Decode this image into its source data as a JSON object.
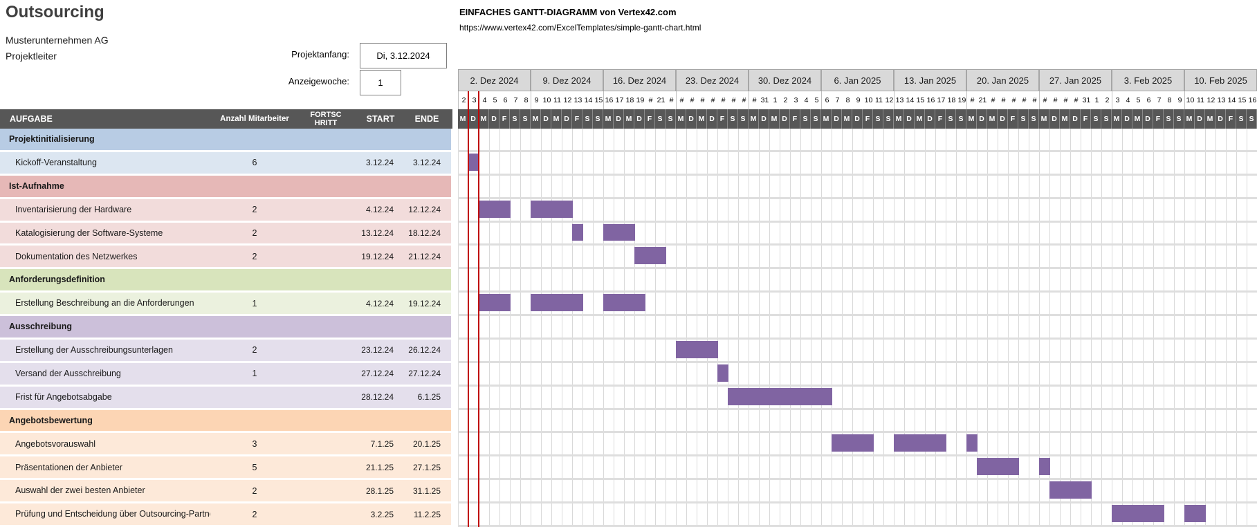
{
  "header": {
    "title": "Outsourcing",
    "company": "Musterunternehmen AG",
    "role": "Projektleiter",
    "credit_title": "EINFACHES GANTT-DIAGRAMM von Vertex42.com",
    "credit_url": "https://www.vertex42.com/ExcelTemplates/simple-gantt-chart.html",
    "project_start_label": "Projektanfang:",
    "project_start_value": "Di, 3.12.2024",
    "display_week_label": "Anzeigewoche:",
    "display_week_value": "1"
  },
  "table": {
    "columns": [
      "AUFGABE",
      "Anzahl Mitarbeiter",
      "FORTSCHRITT",
      "START",
      "ENDE"
    ]
  },
  "timeline": {
    "day_letters": [
      "M",
      "D",
      "M",
      "D",
      "F",
      "S",
      "S"
    ],
    "today_day_index": 1,
    "weeks": [
      {
        "label": "2. Dez 2024",
        "days": [
          "2",
          "3",
          "4",
          "5",
          "6",
          "7",
          "8"
        ]
      },
      {
        "label": "9. Dez 2024",
        "days": [
          "9",
          "10",
          "11",
          "12",
          "13",
          "14",
          "15"
        ]
      },
      {
        "label": "16. Dez 2024",
        "days": [
          "16",
          "17",
          "18",
          "19",
          "#",
          "21",
          "#"
        ]
      },
      {
        "label": "23. Dez 2024",
        "days": [
          "#",
          "#",
          "#",
          "#",
          "#",
          "#",
          "#"
        ]
      },
      {
        "label": "30. Dez 2024",
        "days": [
          "#",
          "31",
          "1",
          "2",
          "3",
          "4",
          "5"
        ]
      },
      {
        "label": "6. Jan 2025",
        "days": [
          "6",
          "7",
          "8",
          "9",
          "10",
          "11",
          "12"
        ]
      },
      {
        "label": "13. Jan 2025",
        "days": [
          "13",
          "14",
          "15",
          "16",
          "17",
          "18",
          "19"
        ]
      },
      {
        "label": "20. Jan 2025",
        "days": [
          "#",
          "21",
          "#",
          "#",
          "#",
          "#",
          "#"
        ]
      },
      {
        "label": "27. Jan 2025",
        "days": [
          "#",
          "#",
          "#",
          "#",
          "31",
          "1",
          "2"
        ]
      },
      {
        "label": "3. Feb 2025",
        "days": [
          "3",
          "4",
          "5",
          "6",
          "7",
          "8",
          "9"
        ]
      },
      {
        "label": "10. Feb 2025",
        "days": [
          "10",
          "11",
          "12",
          "13",
          "14",
          "15",
          "16"
        ]
      }
    ]
  },
  "rows": [
    {
      "type": "category",
      "label": "Projektinitialisierung",
      "group": "blue"
    },
    {
      "type": "task",
      "label": "Kickoff-Veranstaltung",
      "workers": "6",
      "progress": "",
      "start": "3.12.24",
      "end": "3.12.24",
      "group": "blue",
      "bars": [
        [
          1,
          1
        ]
      ]
    },
    {
      "type": "category",
      "label": "Ist-Aufnahme",
      "group": "rose"
    },
    {
      "type": "task",
      "label": "Inventarisierung der Hardware",
      "workers": "2",
      "progress": "",
      "start": "4.12.24",
      "end": "12.12.24",
      "group": "rose",
      "bars": [
        [
          2,
          3
        ],
        [
          7,
          4
        ]
      ]
    },
    {
      "type": "task",
      "label": "Katalogisierung der Software-Systeme",
      "workers": "2",
      "progress": "",
      "start": "13.12.24",
      "end": "18.12.24",
      "group": "rose",
      "bars": [
        [
          11,
          1
        ],
        [
          14,
          3
        ]
      ]
    },
    {
      "type": "task",
      "label": "Dokumentation des Netzwerkes",
      "workers": "2",
      "progress": "",
      "start": "19.12.24",
      "end": "21.12.24",
      "group": "rose",
      "bars": [
        [
          17,
          3
        ]
      ]
    },
    {
      "type": "category",
      "label": "Anforderungsdefinition",
      "group": "green"
    },
    {
      "type": "task",
      "label": "Erstellung Beschreibung an die Anforderungen",
      "workers": "1",
      "progress": "",
      "start": "4.12.24",
      "end": "19.12.24",
      "group": "green",
      "bars": [
        [
          2,
          3
        ],
        [
          7,
          5
        ],
        [
          14,
          4
        ]
      ]
    },
    {
      "type": "category",
      "label": "Ausschreibung",
      "group": "purple"
    },
    {
      "type": "task",
      "label": "Erstellung der Ausschreibungsunterlagen",
      "workers": "2",
      "progress": "",
      "start": "23.12.24",
      "end": "26.12.24",
      "group": "purple",
      "bars": [
        [
          21,
          4
        ]
      ]
    },
    {
      "type": "task",
      "label": "Versand der Ausschreibung",
      "workers": "1",
      "progress": "",
      "start": "27.12.24",
      "end": "27.12.24",
      "group": "purple",
      "bars": [
        [
          25,
          1
        ]
      ]
    },
    {
      "type": "task",
      "label": "Frist für Angebotsabgabe",
      "workers": "",
      "progress": "",
      "start": "28.12.24",
      "end": "6.1.25",
      "group": "purple",
      "bars": [
        [
          26,
          10
        ]
      ]
    },
    {
      "type": "category",
      "label": "Angebotsbewertung",
      "group": "orange"
    },
    {
      "type": "task",
      "label": "Angebotsvorauswahl",
      "workers": "3",
      "progress": "",
      "start": "7.1.25",
      "end": "20.1.25",
      "group": "orange",
      "bars": [
        [
          36,
          4
        ],
        [
          42,
          5
        ],
        [
          49,
          1
        ]
      ]
    },
    {
      "type": "task",
      "label": "Präsentationen der Anbieter",
      "workers": "5",
      "progress": "",
      "start": "21.1.25",
      "end": "27.1.25",
      "group": "orange",
      "bars": [
        [
          50,
          4
        ],
        [
          56,
          1
        ]
      ]
    },
    {
      "type": "task",
      "label": "Auswahl der zwei besten Anbieter",
      "workers": "2",
      "progress": "",
      "start": "28.1.25",
      "end": "31.1.25",
      "group": "orange",
      "bars": [
        [
          57,
          4
        ]
      ]
    },
    {
      "type": "task",
      "label": "Prüfung und Entscheidung über Outsourcing-Partner",
      "workers": "2",
      "progress": "",
      "start": "3.2.25",
      "end": "11.2.25",
      "group": "orange",
      "bars": [
        [
          63,
          5
        ],
        [
          70,
          2
        ]
      ]
    }
  ],
  "colors": {
    "bar": "#8064A2",
    "today_line": "#C00000",
    "header_bg": "#575757",
    "week_box_bg": "#D9D9D9",
    "grid_line": "#D9D9D9",
    "title": "#3F3F3F",
    "groups": {
      "blue": {
        "category": "#B8CCE4",
        "task": "#DCE6F1"
      },
      "rose": {
        "category": "#E6B8B7",
        "task": "#F2DCDB"
      },
      "green": {
        "category": "#D8E4BC",
        "task": "#EBF1DE"
      },
      "purple": {
        "category": "#CCC0DA",
        "task": "#E4DFEC"
      },
      "orange": {
        "category": "#FCD5B4",
        "task": "#FDE9D9"
      }
    }
  }
}
